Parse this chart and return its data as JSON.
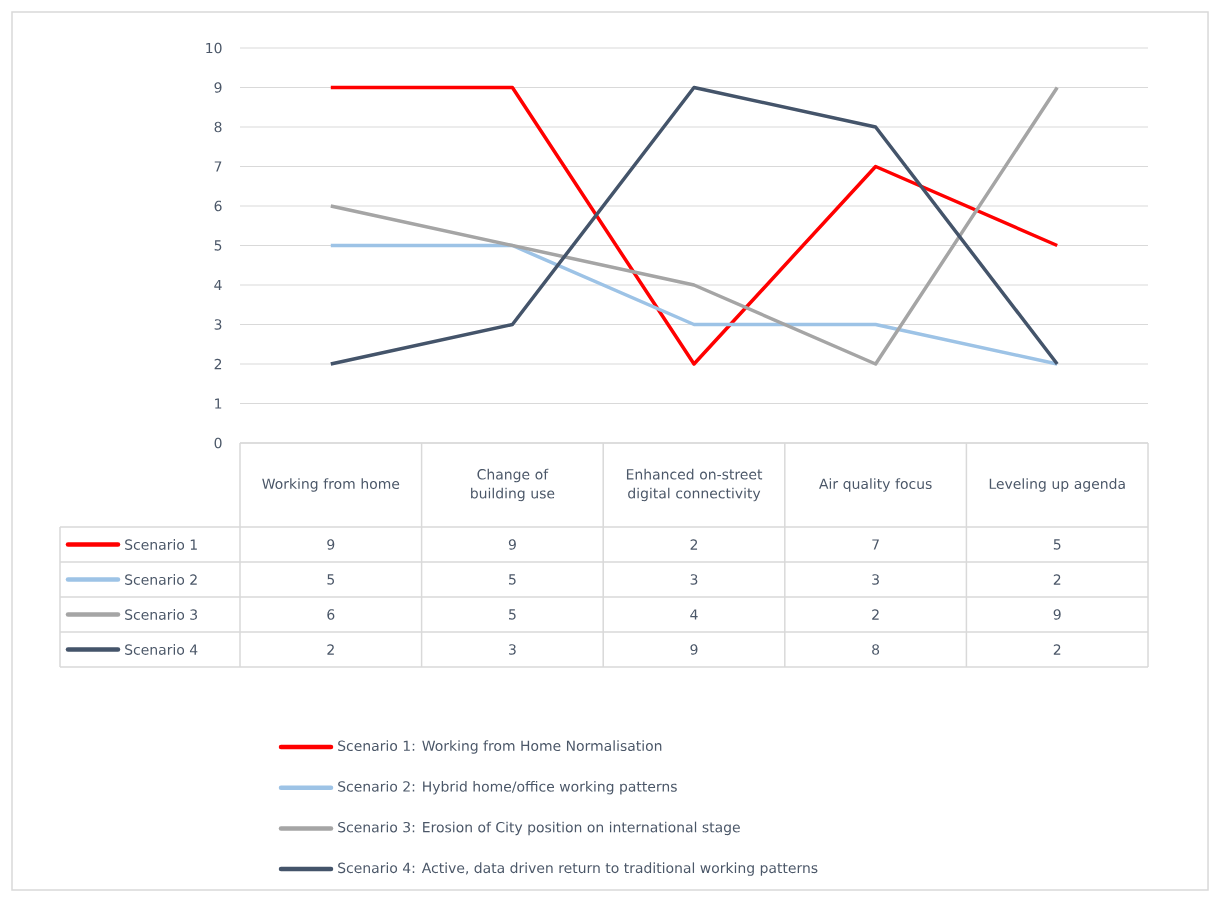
{
  "chart_data": {
    "type": "line",
    "categories": [
      "Working from home",
      "Change of building use",
      "Enhanced on-street digital connectivity",
      "Air quality focus",
      "Leveling up agenda"
    ],
    "series": [
      {
        "name": "Scenario 1",
        "color": "#ff0000",
        "values": [
          9,
          9,
          2,
          7,
          5
        ]
      },
      {
        "name": "Scenario 2",
        "color": "#9dc3e6",
        "values": [
          5,
          5,
          3,
          3,
          2
        ]
      },
      {
        "name": "Scenario 3",
        "color": "#a5a5a5",
        "values": [
          6,
          5,
          4,
          2,
          9
        ]
      },
      {
        "name": "Scenario 4",
        "color": "#44546a",
        "values": [
          2,
          3,
          9,
          8,
          2
        ]
      }
    ],
    "ylim": [
      0,
      10
    ],
    "yticks": [
      0,
      1,
      2,
      3,
      4,
      5,
      6,
      7,
      8,
      9,
      10
    ],
    "grid": "y",
    "legend": "bottom",
    "data_labels": true,
    "marker": "none",
    "line_style": "solid",
    "annotations": [
      "Scenario 1: Working from Home Normalisation",
      "Scenario 2: Hybrid home/office working patterns",
      "Scenario 3: Erosion of City position on international stage",
      "Scenario 4: Active, data driven return to traditional working patterns"
    ]
  }
}
